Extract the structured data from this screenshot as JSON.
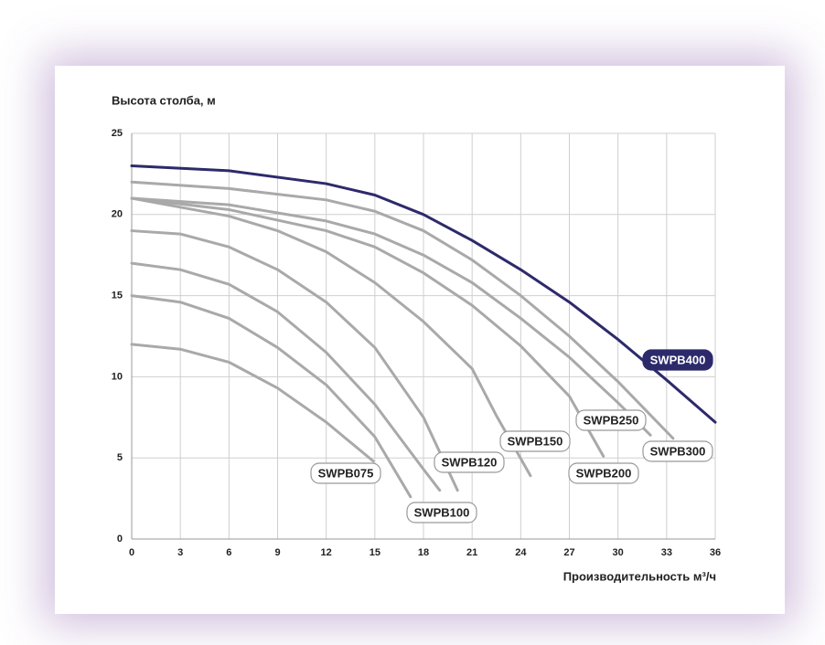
{
  "chart_data": {
    "type": "line",
    "y_label": "Высота столба, м",
    "x_label": "Производительность м³/ч",
    "xlim": [
      0,
      36
    ],
    "xticks": [
      0,
      3,
      6,
      9,
      12,
      15,
      18,
      21,
      24,
      27,
      30,
      33,
      36
    ],
    "ylim": [
      0,
      25
    ],
    "yticks": [
      0,
      5,
      10,
      15,
      20,
      25
    ],
    "grid": true,
    "series": [
      {
        "color": "#a9a9a9",
        "x": [
          0,
          3,
          6,
          9,
          12,
          14.9
        ],
        "values": [
          12,
          11.7,
          10.9,
          9.3,
          7.2,
          4.8
        ]
      },
      {
        "name": "SWPB075",
        "color": "#a9a9a9",
        "x": [
          0,
          3,
          6,
          9,
          12,
          15,
          17.2
        ],
        "values": [
          15,
          14.6,
          13.6,
          11.8,
          9.5,
          6.3,
          2.6
        ]
      },
      {
        "name": "SWPB100",
        "color": "#a9a9a9",
        "x": [
          0,
          3,
          6,
          9,
          12,
          15,
          18,
          19
        ],
        "values": [
          17,
          16.6,
          15.7,
          14,
          11.5,
          8.3,
          4.3,
          3
        ]
      },
      {
        "name": "SWPB120",
        "color": "#a9a9a9",
        "x": [
          0,
          3,
          6,
          9,
          12,
          15,
          18,
          20.1
        ],
        "values": [
          19,
          18.8,
          18,
          16.6,
          14.6,
          11.8,
          7.5,
          3
        ]
      },
      {
        "name": "SWPB150",
        "color": "#a9a9a9",
        "x": [
          0,
          6,
          9,
          12,
          15,
          18,
          21,
          22.5,
          24.6
        ],
        "values": [
          21,
          19.9,
          19,
          17.7,
          15.8,
          13.4,
          10.5,
          7.6,
          3.9
        ]
      },
      {
        "name": "SWPB200",
        "color": "#a9a9a9",
        "x": [
          0,
          6,
          12,
          15,
          18,
          21,
          24,
          27,
          29.1
        ],
        "values": [
          21,
          20.3,
          19,
          18,
          16.4,
          14.4,
          11.9,
          8.8,
          5.1
        ]
      },
      {
        "name": "SWPB250",
        "color": "#a9a9a9",
        "x": [
          0,
          6,
          12,
          15,
          18,
          21,
          24,
          27,
          30,
          32
        ],
        "values": [
          21,
          20.6,
          19.6,
          18.8,
          17.5,
          15.8,
          13.6,
          11.2,
          8.4,
          6.4
        ]
      },
      {
        "name": "SWPB300",
        "color": "#a9a9a9",
        "x": [
          0,
          6,
          12,
          15,
          18,
          21,
          24,
          27,
          30,
          33.4
        ],
        "values": [
          22,
          21.6,
          20.9,
          20.2,
          19,
          17.2,
          15,
          12.5,
          9.7,
          6.2
        ]
      },
      {
        "name": "SWPB400",
        "color": "#2d2a6b",
        "x": [
          0,
          6,
          12,
          15,
          18,
          21,
          24,
          27,
          30,
          33,
          36
        ],
        "values": [
          23,
          22.7,
          21.9,
          21.2,
          20,
          18.4,
          16.6,
          14.6,
          12.3,
          9.8,
          7.2
        ]
      }
    ]
  }
}
